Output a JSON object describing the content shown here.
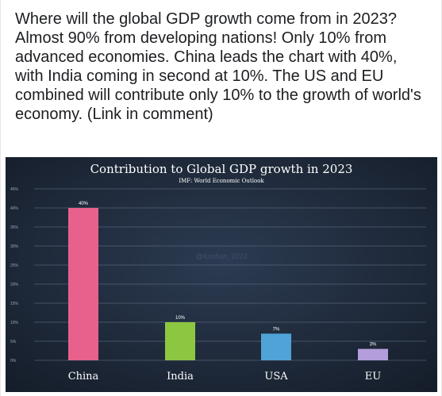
{
  "post": {
    "text": "Where will the global GDP growth come from in 2023? Almost 90% from developing nations! Only 10% from advanced economies. China leads the chart with 40%, with India coming in second at 10%. The US and EU combined will contribute only 10% to the growth of world's economy. (Link in comment)"
  },
  "chart_data": {
    "type": "bar",
    "title": "Contribution to Global GDP growth in 2023",
    "subtitle": "IMF: World Economic Outlook",
    "watermark": "@Kushan_2023",
    "categories": [
      "China",
      "India",
      "USA",
      "EU"
    ],
    "values": [
      40,
      10,
      7,
      3
    ],
    "data_labels": [
      "40%",
      "10%",
      "7%",
      "3%"
    ],
    "colors": [
      "#e8618c",
      "#8dc641",
      "#4fa3d6",
      "#b39ddb"
    ],
    "yticks": [
      "0%",
      "5%",
      "10%",
      "15%",
      "20%",
      "25%",
      "30%",
      "35%",
      "40%",
      "45%"
    ],
    "ylim": [
      0,
      45
    ],
    "grid": true,
    "legend": "none",
    "background": "#1f2a3a"
  }
}
